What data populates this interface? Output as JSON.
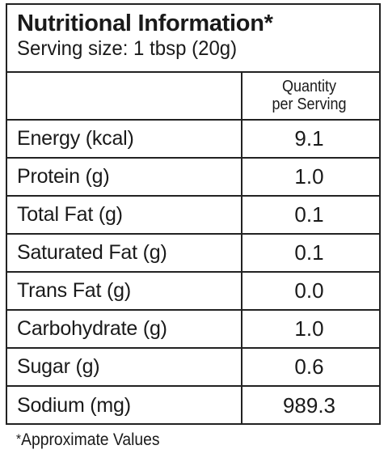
{
  "header": {
    "title": "Nutritional Information*",
    "serving": "Serving size: 1 tbsp (20g)"
  },
  "table": {
    "quantity_header_line1": "Quantity",
    "quantity_header_line2": "per Serving",
    "rows": [
      {
        "name": "Energy (kcal)",
        "value": "9.1"
      },
      {
        "name": "Protein (g)",
        "value": "1.0"
      },
      {
        "name": "Total Fat (g)",
        "value": "0.1"
      },
      {
        "name": "Saturated Fat (g)",
        "value": "0.1"
      },
      {
        "name": "Trans Fat (g)",
        "value": "0.0"
      },
      {
        "name": "Carbohydrate (g)",
        "value": "1.0"
      },
      {
        "name": "Sugar (g)",
        "value": "0.6"
      },
      {
        "name": "Sodium (mg)",
        "value": "989.3"
      }
    ]
  },
  "footnote": {
    "star": "*",
    "text": "Approximate Values"
  }
}
